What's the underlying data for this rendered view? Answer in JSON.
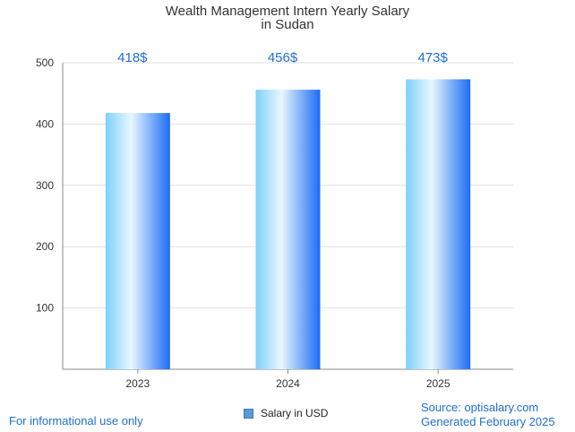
{
  "chart_data": {
    "type": "bar",
    "title_lines": [
      "Wealth Management Intern Yearly Salary",
      "in Sudan"
    ],
    "categories": [
      "2023",
      "2024",
      "2025"
    ],
    "series": [
      {
        "name": "Salary in USD",
        "values": [
          418,
          456,
          473
        ]
      }
    ],
    "data_labels": [
      "418$",
      "456$",
      "473$"
    ],
    "y_ticks": [
      100,
      200,
      300,
      400,
      500
    ],
    "ylim": [
      0,
      500
    ],
    "xlabel": "",
    "ylabel": "",
    "grid": true,
    "legend_position": "bottom"
  },
  "footer": {
    "left_note": "For informational use only",
    "source": "Source: optisalary.com",
    "generated": "Generated February 2025"
  },
  "colors": {
    "bar_light": "#e8f7ff",
    "bar_mid": "#7fd0fb",
    "bar_dark": "#1a6cf5",
    "label": "#1f6fd0"
  }
}
